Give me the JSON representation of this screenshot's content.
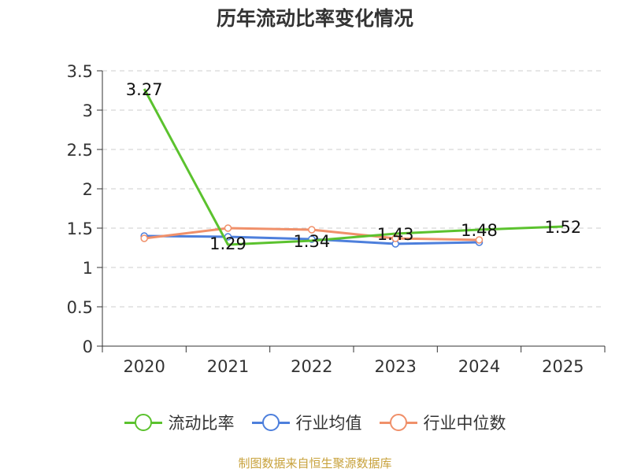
{
  "chart_data": {
    "type": "line",
    "title": "历年流动比率变化情况",
    "categories": [
      "2020",
      "2021",
      "2022",
      "2023",
      "2024",
      "2025"
    ],
    "y_ticks": [
      "0",
      "0.5",
      "1",
      "1.5",
      "2",
      "2.5",
      "3",
      "3.5"
    ],
    "ylim": [
      0,
      3.5
    ],
    "grid": true,
    "legend_position": "bottom",
    "series": [
      {
        "name": "流动比率",
        "color": "#5bc22e",
        "values": [
          3.27,
          1.29,
          1.34,
          1.43,
          1.48,
          1.52
        ],
        "labels": [
          "3.27",
          "1.29",
          "1.34",
          "1.43",
          "1.48",
          "1.52"
        ]
      },
      {
        "name": "行业均值",
        "color": "#4d7fdc",
        "values": [
          1.4,
          1.39,
          1.36,
          1.3,
          1.32,
          null
        ]
      },
      {
        "name": "行业中位数",
        "color": "#f0906a",
        "values": [
          1.37,
          1.5,
          1.48,
          1.37,
          1.35,
          null
        ]
      }
    ]
  },
  "footer": "制图数据来自恒生聚源数据库"
}
